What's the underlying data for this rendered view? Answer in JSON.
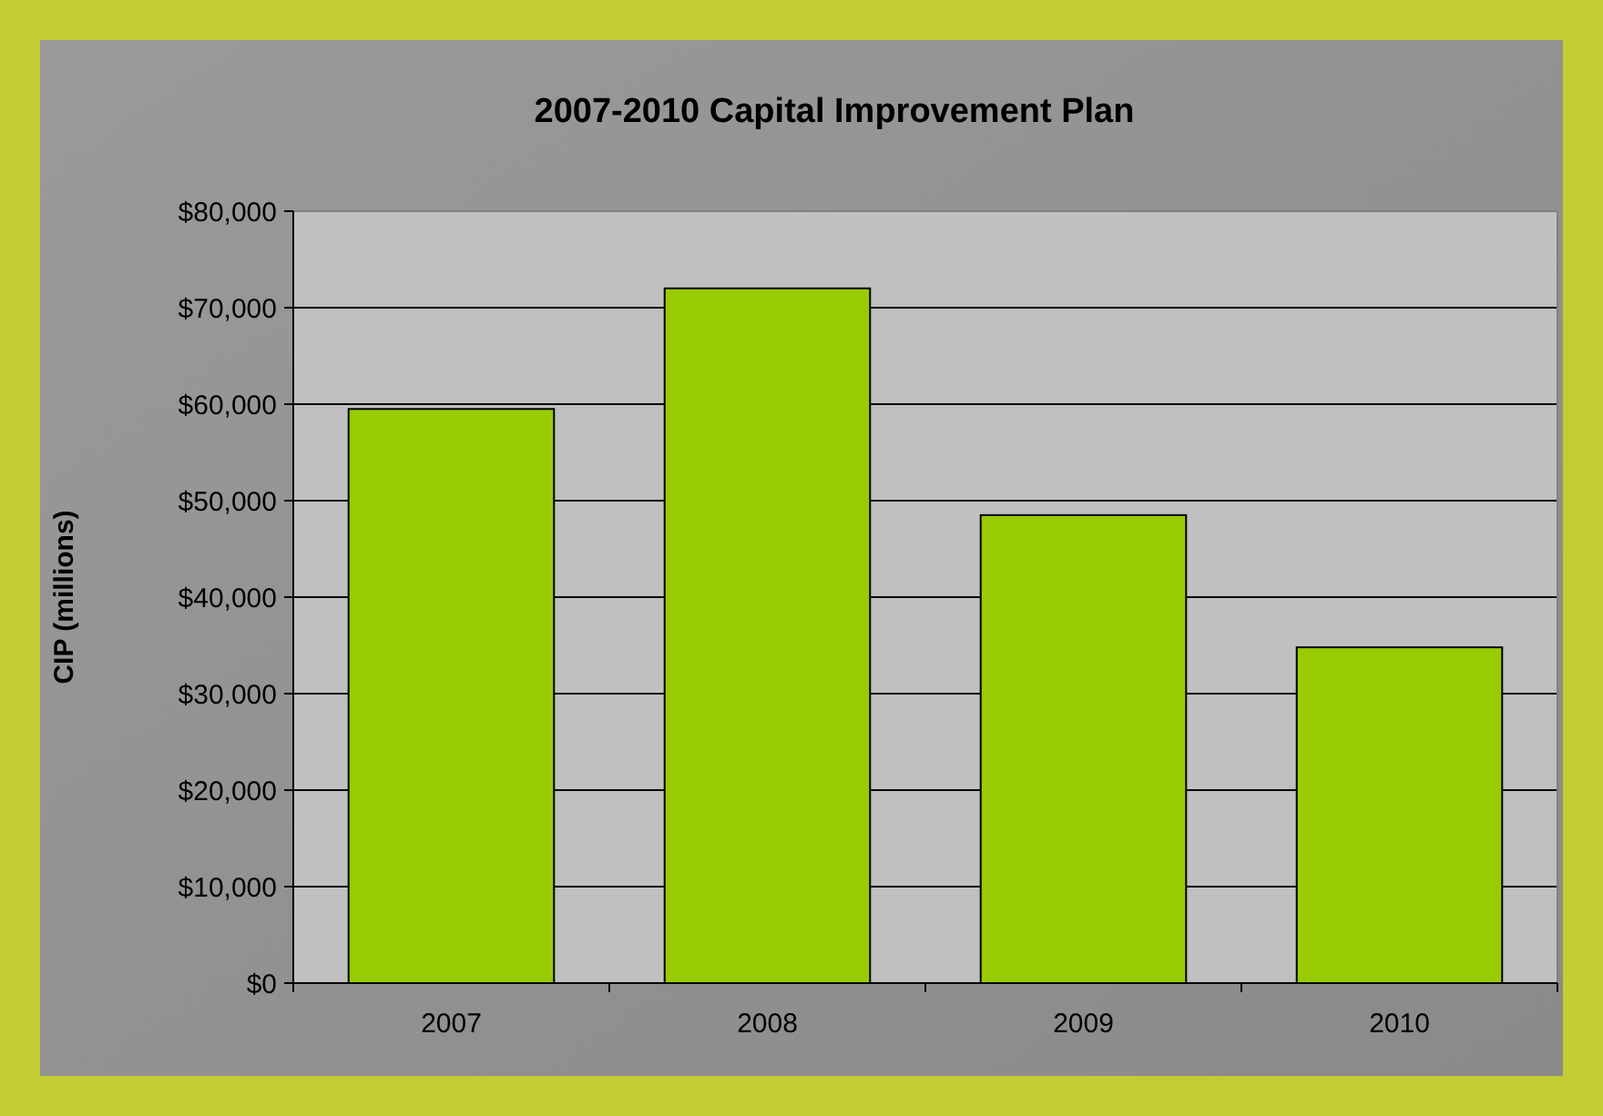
{
  "chart_data": {
    "type": "bar",
    "title": "2007-2010 Capital Improvement Plan",
    "ylabel": "CIP (millions)",
    "categories": [
      "2007",
      "2008",
      "2009",
      "2010"
    ],
    "values": [
      59500,
      72000,
      48500,
      34800
    ],
    "color": "#99cc00",
    "ylim": [
      0,
      80000
    ],
    "yticks": [
      {
        "value": 0,
        "label": "$0"
      },
      {
        "value": 10000,
        "label": "$10,000"
      },
      {
        "value": 20000,
        "label": "$20,000"
      },
      {
        "value": 30000,
        "label": "$30,000"
      },
      {
        "value": 40000,
        "label": "$40,000"
      },
      {
        "value": 50000,
        "label": "$50,000"
      },
      {
        "value": 60000,
        "label": "$60,000"
      },
      {
        "value": 70000,
        "label": "$70,000"
      },
      {
        "value": 80000,
        "label": "$80,000"
      }
    ],
    "grid": "y"
  }
}
